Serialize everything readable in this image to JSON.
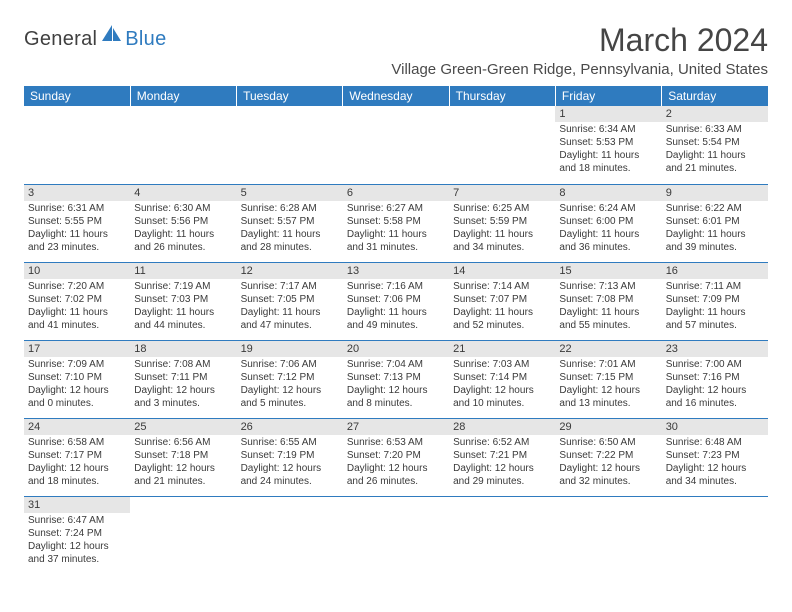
{
  "logo": {
    "word1": "General",
    "word2": "Blue",
    "icon_color": "#2f7bbf"
  },
  "title": "March 2024",
  "location": "Village Green-Green Ridge, Pennsylvania, United States",
  "colors": {
    "header_bg": "#2f7bbf",
    "header_fg": "#ffffff",
    "daynum_bg": "#e6e6e6",
    "rule": "#2f7bbf"
  },
  "weekdays": [
    "Sunday",
    "Monday",
    "Tuesday",
    "Wednesday",
    "Thursday",
    "Friday",
    "Saturday"
  ],
  "weeks": [
    [
      null,
      null,
      null,
      null,
      null,
      {
        "n": "1",
        "sr": "6:34 AM",
        "ss": "5:53 PM",
        "dl": "11 hours and 18 minutes."
      },
      {
        "n": "2",
        "sr": "6:33 AM",
        "ss": "5:54 PM",
        "dl": "11 hours and 21 minutes."
      }
    ],
    [
      {
        "n": "3",
        "sr": "6:31 AM",
        "ss": "5:55 PM",
        "dl": "11 hours and 23 minutes."
      },
      {
        "n": "4",
        "sr": "6:30 AM",
        "ss": "5:56 PM",
        "dl": "11 hours and 26 minutes."
      },
      {
        "n": "5",
        "sr": "6:28 AM",
        "ss": "5:57 PM",
        "dl": "11 hours and 28 minutes."
      },
      {
        "n": "6",
        "sr": "6:27 AM",
        "ss": "5:58 PM",
        "dl": "11 hours and 31 minutes."
      },
      {
        "n": "7",
        "sr": "6:25 AM",
        "ss": "5:59 PM",
        "dl": "11 hours and 34 minutes."
      },
      {
        "n": "8",
        "sr": "6:24 AM",
        "ss": "6:00 PM",
        "dl": "11 hours and 36 minutes."
      },
      {
        "n": "9",
        "sr": "6:22 AM",
        "ss": "6:01 PM",
        "dl": "11 hours and 39 minutes."
      }
    ],
    [
      {
        "n": "10",
        "sr": "7:20 AM",
        "ss": "7:02 PM",
        "dl": "11 hours and 41 minutes."
      },
      {
        "n": "11",
        "sr": "7:19 AM",
        "ss": "7:03 PM",
        "dl": "11 hours and 44 minutes."
      },
      {
        "n": "12",
        "sr": "7:17 AM",
        "ss": "7:05 PM",
        "dl": "11 hours and 47 minutes."
      },
      {
        "n": "13",
        "sr": "7:16 AM",
        "ss": "7:06 PM",
        "dl": "11 hours and 49 minutes."
      },
      {
        "n": "14",
        "sr": "7:14 AM",
        "ss": "7:07 PM",
        "dl": "11 hours and 52 minutes."
      },
      {
        "n": "15",
        "sr": "7:13 AM",
        "ss": "7:08 PM",
        "dl": "11 hours and 55 minutes."
      },
      {
        "n": "16",
        "sr": "7:11 AM",
        "ss": "7:09 PM",
        "dl": "11 hours and 57 minutes."
      }
    ],
    [
      {
        "n": "17",
        "sr": "7:09 AM",
        "ss": "7:10 PM",
        "dl": "12 hours and 0 minutes."
      },
      {
        "n": "18",
        "sr": "7:08 AM",
        "ss": "7:11 PM",
        "dl": "12 hours and 3 minutes."
      },
      {
        "n": "19",
        "sr": "7:06 AM",
        "ss": "7:12 PM",
        "dl": "12 hours and 5 minutes."
      },
      {
        "n": "20",
        "sr": "7:04 AM",
        "ss": "7:13 PM",
        "dl": "12 hours and 8 minutes."
      },
      {
        "n": "21",
        "sr": "7:03 AM",
        "ss": "7:14 PM",
        "dl": "12 hours and 10 minutes."
      },
      {
        "n": "22",
        "sr": "7:01 AM",
        "ss": "7:15 PM",
        "dl": "12 hours and 13 minutes."
      },
      {
        "n": "23",
        "sr": "7:00 AM",
        "ss": "7:16 PM",
        "dl": "12 hours and 16 minutes."
      }
    ],
    [
      {
        "n": "24",
        "sr": "6:58 AM",
        "ss": "7:17 PM",
        "dl": "12 hours and 18 minutes."
      },
      {
        "n": "25",
        "sr": "6:56 AM",
        "ss": "7:18 PM",
        "dl": "12 hours and 21 minutes."
      },
      {
        "n": "26",
        "sr": "6:55 AM",
        "ss": "7:19 PM",
        "dl": "12 hours and 24 minutes."
      },
      {
        "n": "27",
        "sr": "6:53 AM",
        "ss": "7:20 PM",
        "dl": "12 hours and 26 minutes."
      },
      {
        "n": "28",
        "sr": "6:52 AM",
        "ss": "7:21 PM",
        "dl": "12 hours and 29 minutes."
      },
      {
        "n": "29",
        "sr": "6:50 AM",
        "ss": "7:22 PM",
        "dl": "12 hours and 32 minutes."
      },
      {
        "n": "30",
        "sr": "6:48 AM",
        "ss": "7:23 PM",
        "dl": "12 hours and 34 minutes."
      }
    ],
    [
      {
        "n": "31",
        "sr": "6:47 AM",
        "ss": "7:24 PM",
        "dl": "12 hours and 37 minutes."
      },
      null,
      null,
      null,
      null,
      null,
      null
    ]
  ],
  "labels": {
    "sunrise": "Sunrise:",
    "sunset": "Sunset:",
    "daylight": "Daylight:"
  }
}
